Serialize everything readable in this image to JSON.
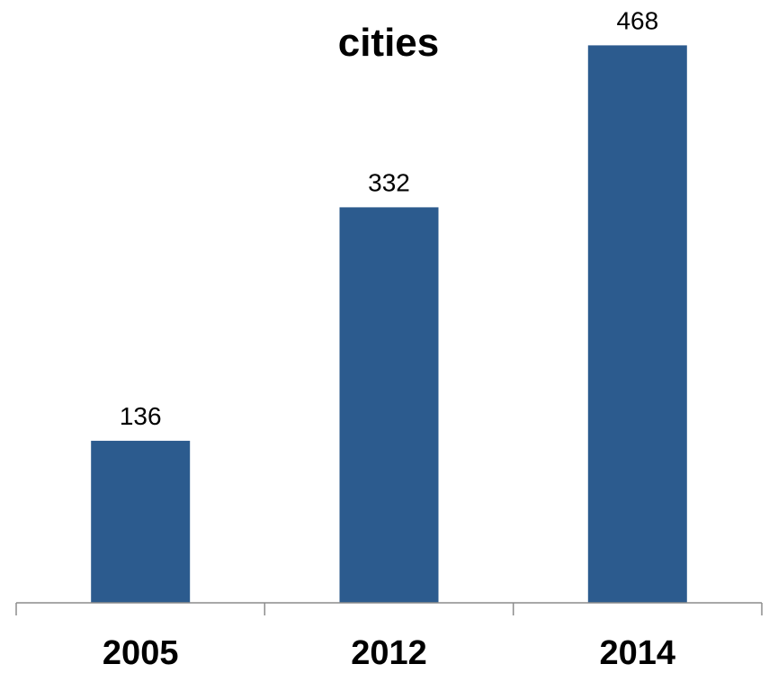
{
  "chart_data": {
    "type": "bar",
    "title": "cities",
    "categories": [
      "2005",
      "2012",
      "2014"
    ],
    "values": [
      136,
      332,
      468
    ],
    "xlabel": "",
    "ylabel": "",
    "ylim": [
      0,
      480
    ],
    "grid": false,
    "legend": "none",
    "bar_color": "#2C5B8E",
    "axis_color": "#8C8C8C"
  }
}
